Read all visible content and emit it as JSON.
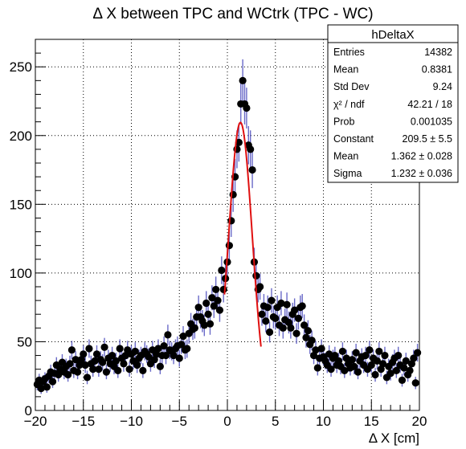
{
  "chart_data": {
    "type": "scatter",
    "title": "Δ X between TPC and WCtrk (TPC - WC)",
    "xlabel": "Δ X [cm]",
    "ylabel": "",
    "xlim": [
      -20,
      20
    ],
    "ylim": [
      0,
      270
    ],
    "x_ticks": [
      -20,
      -15,
      -10,
      -5,
      0,
      5,
      10,
      15,
      20
    ],
    "y_ticks": [
      0,
      50,
      100,
      150,
      200,
      250
    ],
    "grid": true,
    "series": [
      {
        "marker_color": "#000000",
        "error_color": "#6a6ac8",
        "points": [
          [
            -19.8,
            19
          ],
          [
            -19.6,
            22
          ],
          [
            -19.4,
            16
          ],
          [
            -19.2,
            21
          ],
          [
            -19.0,
            23
          ],
          [
            -18.8,
            17
          ],
          [
            -18.6,
            25
          ],
          [
            -18.4,
            28
          ],
          [
            -18.2,
            21
          ],
          [
            -18.0,
            27
          ],
          [
            -17.8,
            33
          ],
          [
            -17.6,
            26
          ],
          [
            -17.4,
            30
          ],
          [
            -17.2,
            35
          ],
          [
            -17.0,
            28
          ],
          [
            -16.8,
            32
          ],
          [
            -16.6,
            26
          ],
          [
            -16.4,
            34
          ],
          [
            -16.2,
            44
          ],
          [
            -16.0,
            29
          ],
          [
            -15.8,
            37
          ],
          [
            -15.6,
            28
          ],
          [
            -15.4,
            33
          ],
          [
            -15.2,
            37
          ],
          [
            -15.0,
            41
          ],
          [
            -14.8,
            33
          ],
          [
            -14.6,
            24
          ],
          [
            -14.4,
            45
          ],
          [
            -14.2,
            34
          ],
          [
            -14.0,
            30
          ],
          [
            -13.8,
            36
          ],
          [
            -13.6,
            41
          ],
          [
            -13.4,
            30
          ],
          [
            -13.2,
            37
          ],
          [
            -13.0,
            35
          ],
          [
            -12.8,
            46
          ],
          [
            -12.6,
            28
          ],
          [
            -12.4,
            38
          ],
          [
            -12.2,
            34
          ],
          [
            -12.0,
            40
          ],
          [
            -11.8,
            32
          ],
          [
            -11.6,
            36
          ],
          [
            -11.4,
            29
          ],
          [
            -11.2,
            45
          ],
          [
            -11.0,
            38
          ],
          [
            -10.8,
            34
          ],
          [
            -10.6,
            40
          ],
          [
            -10.4,
            44
          ],
          [
            -10.2,
            30
          ],
          [
            -10.0,
            41
          ],
          [
            -9.8,
            36
          ],
          [
            -9.6,
            43
          ],
          [
            -9.4,
            33
          ],
          [
            -9.2,
            38
          ],
          [
            -9.0,
            40
          ],
          [
            -8.8,
            29
          ],
          [
            -8.6,
            43
          ],
          [
            -8.4,
            41
          ],
          [
            -8.2,
            39
          ],
          [
            -8.0,
            34
          ],
          [
            -7.8,
            44
          ],
          [
            -7.6,
            37
          ],
          [
            -7.4,
            41
          ],
          [
            -7.2,
            45
          ],
          [
            -7.0,
            32
          ],
          [
            -6.8,
            40
          ],
          [
            -6.6,
            47
          ],
          [
            -6.4,
            40
          ],
          [
            -6.2,
            55
          ],
          [
            -6.0,
            44
          ],
          [
            -5.8,
            43
          ],
          [
            -5.6,
            40
          ],
          [
            -5.4,
            45
          ],
          [
            -5.2,
            47
          ],
          [
            -5.0,
            38
          ],
          [
            -4.8,
            48
          ],
          [
            -4.6,
            54
          ],
          [
            -4.4,
            44
          ],
          [
            -4.2,
            45
          ],
          [
            -4.0,
            56
          ],
          [
            -3.8,
            63
          ],
          [
            -3.6,
            59
          ],
          [
            -3.4,
            60
          ],
          [
            -3.2,
            68
          ],
          [
            -3.0,
            75
          ],
          [
            -2.8,
            68
          ],
          [
            -2.6,
            65
          ],
          [
            -2.4,
            62
          ],
          [
            -2.2,
            78
          ],
          [
            -2.0,
            70
          ],
          [
            -1.8,
            63
          ],
          [
            -1.6,
            82
          ],
          [
            -1.4,
            76
          ],
          [
            -1.2,
            88
          ],
          [
            -1.0,
            80
          ],
          [
            -0.8,
            73
          ],
          [
            -0.6,
            102
          ],
          [
            -0.4,
            88
          ],
          [
            -0.2,
            96
          ],
          [
            0.0,
            108
          ],
          [
            0.2,
            120
          ],
          [
            0.4,
            138
          ],
          [
            0.6,
            157
          ],
          [
            0.8,
            170
          ],
          [
            1.0,
            190
          ],
          [
            1.2,
            195
          ],
          [
            1.4,
            223
          ],
          [
            1.6,
            240
          ],
          [
            1.8,
            223
          ],
          [
            2.0,
            220
          ],
          [
            2.2,
            193
          ],
          [
            2.4,
            190
          ],
          [
            2.6,
            175
          ],
          [
            2.8,
            108
          ],
          [
            3.0,
            98
          ],
          [
            3.2,
            88
          ],
          [
            3.4,
            90
          ],
          [
            3.6,
            70
          ],
          [
            3.8,
            76
          ],
          [
            4.0,
            65
          ],
          [
            4.2,
            75
          ],
          [
            4.4,
            57
          ],
          [
            4.6,
            80
          ],
          [
            4.8,
            68
          ],
          [
            5.0,
            67
          ],
          [
            5.2,
            75
          ],
          [
            5.4,
            62
          ],
          [
            5.6,
            78
          ],
          [
            5.8,
            60
          ],
          [
            6.0,
            66
          ],
          [
            6.2,
            77
          ],
          [
            6.4,
            64
          ],
          [
            6.6,
            60
          ],
          [
            6.8,
            70
          ],
          [
            7.0,
            73
          ],
          [
            7.2,
            56
          ],
          [
            7.4,
            67
          ],
          [
            7.6,
            75
          ],
          [
            7.8,
            76
          ],
          [
            8.0,
            62
          ],
          [
            8.2,
            53
          ],
          [
            8.4,
            58
          ],
          [
            8.6,
            48
          ],
          [
            8.8,
            51
          ],
          [
            9.0,
            40
          ],
          [
            9.2,
            44
          ],
          [
            9.4,
            31
          ],
          [
            9.6,
            38
          ],
          [
            9.8,
            45
          ],
          [
            10.0,
            39
          ],
          [
            10.2,
            36
          ],
          [
            10.4,
            33
          ],
          [
            10.6,
            41
          ],
          [
            10.8,
            30
          ],
          [
            11.0,
            38
          ],
          [
            11.2,
            40
          ],
          [
            11.4,
            33
          ],
          [
            11.6,
            36
          ],
          [
            11.8,
            32
          ],
          [
            12.0,
            43
          ],
          [
            12.2,
            29
          ],
          [
            12.4,
            38
          ],
          [
            12.6,
            34
          ],
          [
            12.8,
            31
          ],
          [
            13.0,
            37
          ],
          [
            13.2,
            32
          ],
          [
            13.4,
            42
          ],
          [
            13.6,
            28
          ],
          [
            13.8,
            36
          ],
          [
            14.0,
            39
          ],
          [
            14.2,
            33
          ],
          [
            14.4,
            40
          ],
          [
            14.6,
            30
          ],
          [
            14.8,
            44
          ],
          [
            15.0,
            33
          ],
          [
            15.2,
            38
          ],
          [
            15.4,
            26
          ],
          [
            15.6,
            36
          ],
          [
            15.8,
            43
          ],
          [
            16.0,
            30
          ],
          [
            16.2,
            34
          ],
          [
            16.4,
            40
          ],
          [
            16.6,
            24
          ],
          [
            16.8,
            32
          ],
          [
            17.0,
            27
          ],
          [
            17.2,
            35
          ],
          [
            17.4,
            38
          ],
          [
            17.6,
            29
          ],
          [
            17.8,
            40
          ],
          [
            18.0,
            33
          ],
          [
            18.2,
            22
          ],
          [
            18.4,
            31
          ],
          [
            18.6,
            36
          ],
          [
            18.8,
            26
          ],
          [
            19.0,
            29
          ],
          [
            19.2,
            34
          ],
          [
            19.4,
            38
          ],
          [
            19.6,
            20
          ],
          [
            19.8,
            42
          ]
        ]
      }
    ],
    "fit": {
      "type": "gaus",
      "color": "#e01010",
      "range": [
        -0.3,
        3.5
      ],
      "constant": 209.5,
      "mean": 1.362,
      "sigma": 1.232
    }
  },
  "stats": {
    "title": "hDeltaX",
    "rows": [
      {
        "label": "Entries",
        "value": "14382"
      },
      {
        "label": "Mean",
        "value": "0.8381"
      },
      {
        "label": "Std Dev",
        "value": "9.24"
      },
      {
        "label": "χ² / ndf",
        "value": "42.21 / 18"
      },
      {
        "label": "Prob",
        "value": "0.001035"
      },
      {
        "label": "Constant",
        "value": "209.5 ± 5.5"
      },
      {
        "label": "Mean",
        "value": "1.362 ± 0.028"
      },
      {
        "label": "Sigma",
        "value": "1.232 ± 0.036"
      }
    ]
  }
}
